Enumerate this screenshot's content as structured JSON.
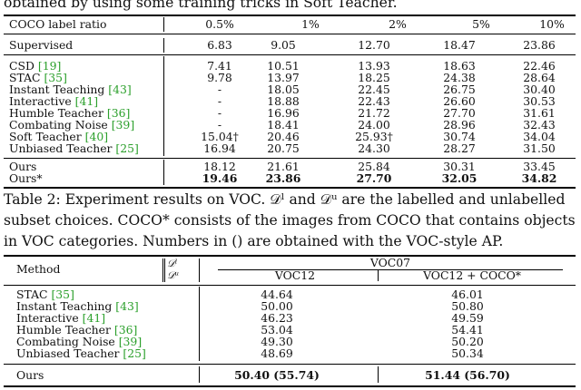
{
  "top_text": "obtained by using some training tricks in Soft Teacher.",
  "table1": {
    "header": [
      "COCO label ratio",
      "0.5%",
      "1%",
      "2%",
      "5%",
      "10%"
    ],
    "supervised": {
      "name": "Supervised",
      "values": [
        "6.83",
        "9.05",
        "12.70",
        "18.47",
        "23.86"
      ]
    },
    "rows": [
      {
        "name": "CSD",
        "cite": "[19]",
        "values": [
          "7.41",
          "10.51",
          "13.93",
          "18.63",
          "22.46"
        ]
      },
      {
        "name": "STAC",
        "cite": "[35]",
        "values": [
          "9.78",
          "13.97",
          "18.25",
          "24.38",
          "28.64"
        ]
      },
      {
        "name": "Instant Teaching",
        "cite": "[43]",
        "values": [
          "-",
          "18.05",
          "22.45",
          "26.75",
          "30.40"
        ]
      },
      {
        "name": "Interactive",
        "cite": "[41]",
        "values": [
          "-",
          "18.88",
          "22.43",
          "26.60",
          "30.53"
        ]
      },
      {
        "name": "Humble Teacher",
        "cite": "[36]",
        "values": [
          "-",
          "16.96",
          "21.72",
          "27.70",
          "31.61"
        ]
      },
      {
        "name": "Combating Noise",
        "cite": "[39]",
        "values": [
          "-",
          "18.41",
          "24.00",
          "28.96",
          "32.43"
        ]
      },
      {
        "name": "Soft Teacher",
        "cite": "[40]",
        "values": [
          "15.04†",
          "20.46",
          "25.93†",
          "30.74",
          "34.04"
        ]
      },
      {
        "name": "Unbiased Teacher",
        "cite": "[25]",
        "values": [
          "16.94",
          "20.75",
          "24.30",
          "28.27",
          "31.50"
        ]
      }
    ],
    "ours": {
      "name": "Ours",
      "values": [
        "18.12",
        "21.61",
        "25.84",
        "30.31",
        "33.45"
      ]
    },
    "ours_star": {
      "name": "Ours*",
      "values": [
        "19.46",
        "23.86",
        "27.70",
        "32.05",
        "34.82"
      ]
    }
  },
  "caption": {
    "line1": "Table 2: Experiment results on VOC. 𝒟ˡ and 𝒟ᵘ are the labelled and unlabelled",
    "line2": "subset choices. COCO* consists of the images from COCO that contains objects",
    "line3": "in VOC categories. Numbers in () are obtained with the VOC-style AP."
  },
  "table2": {
    "method_label": "Method",
    "dl_label": "𝒟ˡ",
    "du_label": "𝒟ᵘ",
    "group_label": "VOC07",
    "col1": "VOC12",
    "col2": "VOC12 + COCO*",
    "rows": [
      {
        "name": "STAC",
        "cite": "[35]",
        "v1": "44.64",
        "v2": "46.01"
      },
      {
        "name": "Instant Teaching",
        "cite": "[43]",
        "v1": "50.00",
        "v2": "50.80"
      },
      {
        "name": "Interactive",
        "cite": "[41]",
        "v1": "46.23",
        "v2": "49.59"
      },
      {
        "name": "Humble Teacher",
        "cite": "[36]",
        "v1": "53.04",
        "v2": "54.41"
      },
      {
        "name": "Combating Noise",
        "cite": "[39]",
        "v1": "49.30",
        "v2": "50.20"
      },
      {
        "name": "Unbiased Teacher",
        "cite": "[25]",
        "v1": "48.69",
        "v2": "50.34"
      }
    ],
    "ours": {
      "name": "Ours",
      "v1": "50.40 (55.74)",
      "v2": "51.44 (56.70)"
    }
  }
}
